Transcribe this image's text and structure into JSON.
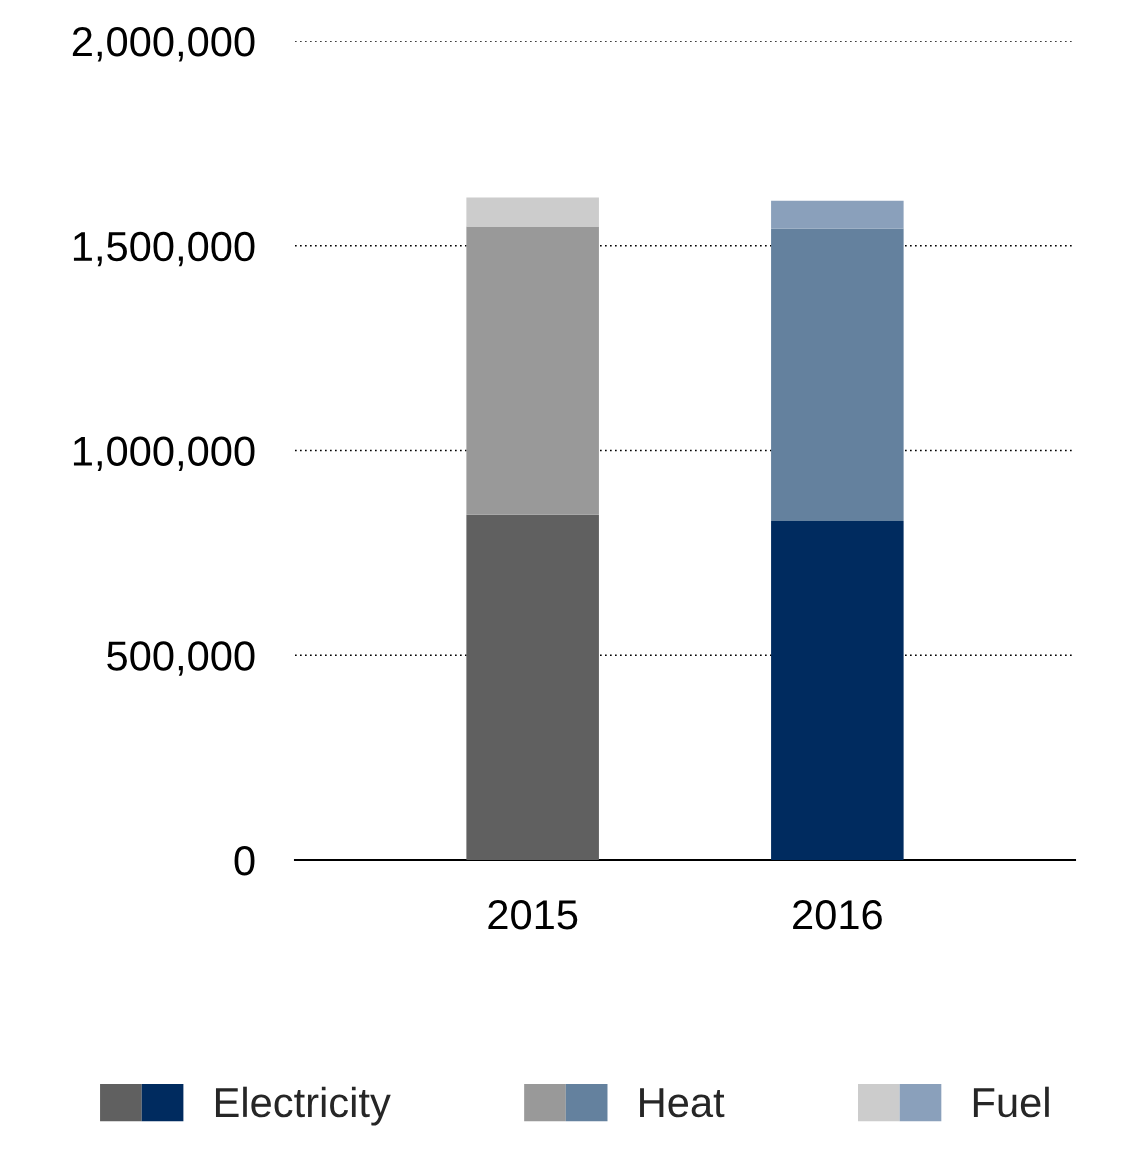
{
  "chart_data": {
    "type": "bar",
    "stacked": true,
    "categories": [
      "2015",
      "2016"
    ],
    "series": [
      {
        "name": "Electricity",
        "colors": [
          "#606060",
          "#002b5f"
        ],
        "values": [
          843000,
          828000
        ]
      },
      {
        "name": "Heat",
        "colors": [
          "#999999",
          "#64819e"
        ],
        "values": [
          704000,
          714000
        ]
      },
      {
        "name": "Fuel",
        "colors": [
          "#cccccc",
          "#8aa0bb"
        ],
        "values": [
          71000,
          68000
        ]
      }
    ],
    "ylim": [
      0,
      2000000
    ],
    "yticks": [
      {
        "value": 0,
        "label": "0"
      },
      {
        "value": 500000,
        "label": "500,000"
      },
      {
        "value": 1000000,
        "label": "1,000,000"
      },
      {
        "value": 1500000,
        "label": "1,500,000"
      },
      {
        "value": 2000000,
        "label": "2,000,000"
      }
    ],
    "grid": "y",
    "legend": "bottom"
  }
}
